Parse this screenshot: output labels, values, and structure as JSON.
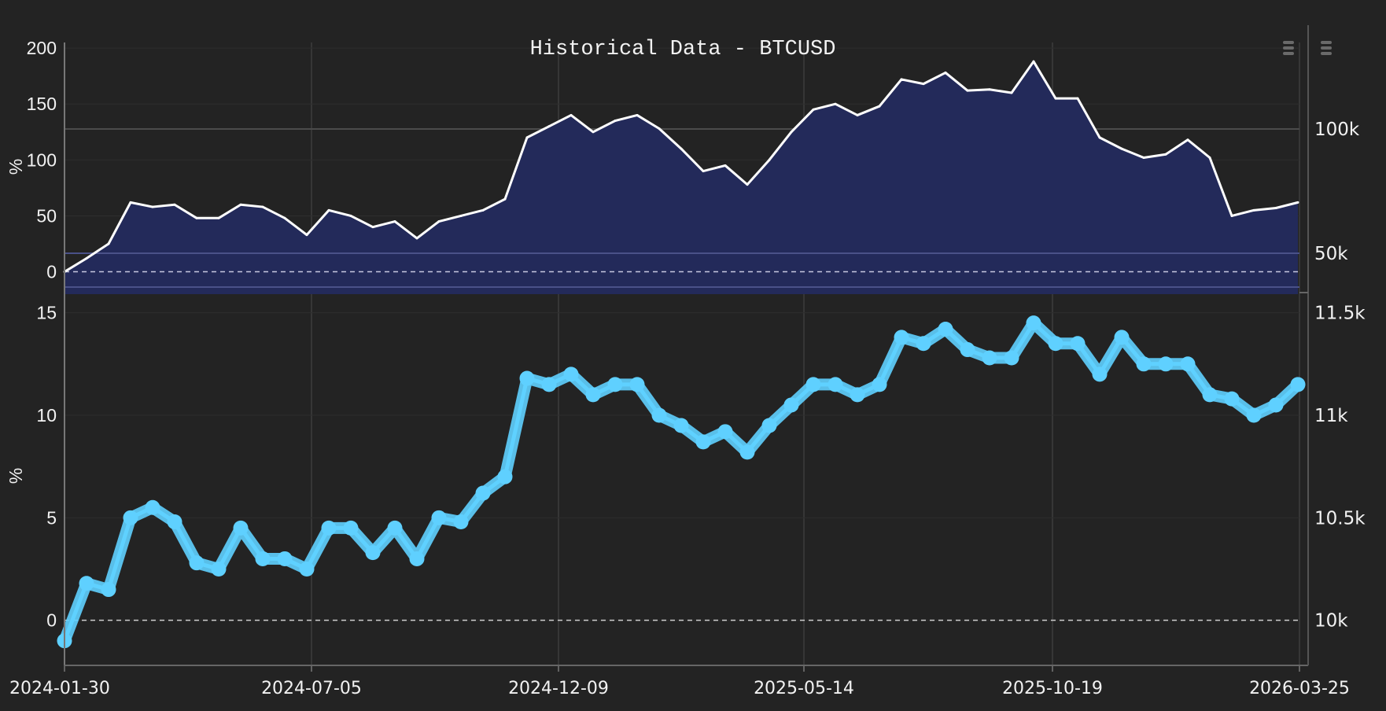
{
  "chart_data": [
    {
      "type": "area",
      "title": "Historical Data - BTCUSD",
      "ylabel": "%",
      "ylim": [
        -20,
        205
      ],
      "yticks": [
        "200",
        "150",
        "100",
        "50",
        "0"
      ],
      "right_axis_ticks": [
        "100k",
        "50k"
      ],
      "xticks": [
        "2024-01-30",
        "2024-07-05",
        "2024-12-09",
        "2025-05-14",
        "2025-10-19",
        "2026-03-25"
      ],
      "colors": {
        "line": "#ffffff",
        "fill": "#232a5a"
      },
      "points": [
        [
          "2024-01-30",
          0
        ],
        [
          "2024-02-13",
          12
        ],
        [
          "2024-02-27",
          25
        ],
        [
          "2024-03-12",
          62
        ],
        [
          "2024-03-26",
          58
        ],
        [
          "2024-04-09",
          60
        ],
        [
          "2024-04-23",
          48
        ],
        [
          "2024-05-07",
          48
        ],
        [
          "2024-05-21",
          60
        ],
        [
          "2024-06-04",
          58
        ],
        [
          "2024-06-18",
          48
        ],
        [
          "2024-07-02",
          33
        ],
        [
          "2024-07-16",
          55
        ],
        [
          "2024-07-30",
          50
        ],
        [
          "2024-08-13",
          40
        ],
        [
          "2024-08-27",
          45
        ],
        [
          "2024-09-10",
          30
        ],
        [
          "2024-09-24",
          45
        ],
        [
          "2024-10-08",
          50
        ],
        [
          "2024-10-22",
          55
        ],
        [
          "2024-11-05",
          65
        ],
        [
          "2024-11-19",
          120
        ],
        [
          "2024-12-03",
          130
        ],
        [
          "2024-12-17",
          140
        ],
        [
          "2024-12-31",
          125
        ],
        [
          "2025-01-14",
          135
        ],
        [
          "2025-01-28",
          140
        ],
        [
          "2025-02-11",
          128
        ],
        [
          "2025-02-25",
          110
        ],
        [
          "2025-03-11",
          90
        ],
        [
          "2025-03-25",
          95
        ],
        [
          "2025-04-08",
          78
        ],
        [
          "2025-04-22",
          100
        ],
        [
          "2025-05-06",
          125
        ],
        [
          "2025-05-20",
          145
        ],
        [
          "2025-06-03",
          150
        ],
        [
          "2025-06-17",
          140
        ],
        [
          "2025-07-01",
          148
        ],
        [
          "2025-07-15",
          172
        ],
        [
          "2025-07-29",
          168
        ],
        [
          "2025-08-12",
          178
        ],
        [
          "2025-08-26",
          162
        ],
        [
          "2025-09-09",
          163
        ],
        [
          "2025-09-23",
          160
        ],
        [
          "2025-10-07",
          188
        ],
        [
          "2025-10-21",
          155
        ],
        [
          "2025-11-04",
          155
        ],
        [
          "2025-11-18",
          120
        ],
        [
          "2025-12-02",
          110
        ],
        [
          "2025-12-16",
          102
        ],
        [
          "2025-12-30",
          105
        ],
        [
          "2026-01-13",
          118
        ],
        [
          "2026-01-27",
          102
        ],
        [
          "2026-02-10",
          50
        ],
        [
          "2026-02-24",
          55
        ],
        [
          "2026-03-10",
          57
        ],
        [
          "2026-03-24",
          62
        ]
      ]
    },
    {
      "type": "line",
      "ylabel": "%",
      "ylim": [
        -2.2,
        15.6
      ],
      "yticks": [
        "15",
        "10",
        "5",
        "0"
      ],
      "right_axis_ticks": [
        "11.5k",
        "11k",
        "10.5k",
        "10k"
      ],
      "colors": {
        "line": "#5fd0ff"
      },
      "points": [
        [
          "2024-01-30",
          -1
        ],
        [
          "2024-02-13",
          1.8
        ],
        [
          "2024-02-27",
          1.5
        ],
        [
          "2024-03-12",
          5
        ],
        [
          "2024-03-26",
          5.5
        ],
        [
          "2024-04-09",
          4.8
        ],
        [
          "2024-04-23",
          2.8
        ],
        [
          "2024-05-07",
          2.5
        ],
        [
          "2024-05-21",
          4.5
        ],
        [
          "2024-06-04",
          3
        ],
        [
          "2024-06-18",
          3
        ],
        [
          "2024-07-02",
          2.5
        ],
        [
          "2024-07-16",
          4.5
        ],
        [
          "2024-07-30",
          4.5
        ],
        [
          "2024-08-13",
          3.3
        ],
        [
          "2024-08-27",
          4.5
        ],
        [
          "2024-09-10",
          3
        ],
        [
          "2024-09-24",
          5
        ],
        [
          "2024-10-08",
          4.8
        ],
        [
          "2024-10-22",
          6.2
        ],
        [
          "2024-11-05",
          7
        ],
        [
          "2024-11-19",
          11.8
        ],
        [
          "2024-12-03",
          11.5
        ],
        [
          "2024-12-17",
          12
        ],
        [
          "2024-12-31",
          11
        ],
        [
          "2025-01-14",
          11.5
        ],
        [
          "2025-01-28",
          11.5
        ],
        [
          "2025-02-11",
          10
        ],
        [
          "2025-02-25",
          9.5
        ],
        [
          "2025-03-11",
          8.7
        ],
        [
          "2025-03-25",
          9.2
        ],
        [
          "2025-04-08",
          8.2
        ],
        [
          "2025-04-22",
          9.5
        ],
        [
          "2025-05-06",
          10.5
        ],
        [
          "2025-05-20",
          11.5
        ],
        [
          "2025-06-03",
          11.5
        ],
        [
          "2025-06-17",
          11
        ],
        [
          "2025-07-01",
          11.5
        ],
        [
          "2025-07-15",
          13.8
        ],
        [
          "2025-07-29",
          13.5
        ],
        [
          "2025-08-12",
          14.2
        ],
        [
          "2025-08-26",
          13.2
        ],
        [
          "2025-09-09",
          12.8
        ],
        [
          "2025-09-23",
          12.8
        ],
        [
          "2025-10-07",
          14.5
        ],
        [
          "2025-10-21",
          13.5
        ],
        [
          "2025-11-04",
          13.5
        ],
        [
          "2025-11-18",
          12
        ],
        [
          "2025-12-02",
          13.8
        ],
        [
          "2025-12-16",
          12.5
        ],
        [
          "2025-12-30",
          12.5
        ],
        [
          "2026-01-13",
          12.5
        ],
        [
          "2026-01-27",
          11
        ],
        [
          "2026-02-10",
          10.8
        ],
        [
          "2026-02-24",
          10
        ],
        [
          "2026-03-10",
          10.5
        ],
        [
          "2026-03-24",
          11.5
        ]
      ]
    }
  ],
  "toolbar": {
    "menu_icon": "hamburger-menu-icon"
  }
}
